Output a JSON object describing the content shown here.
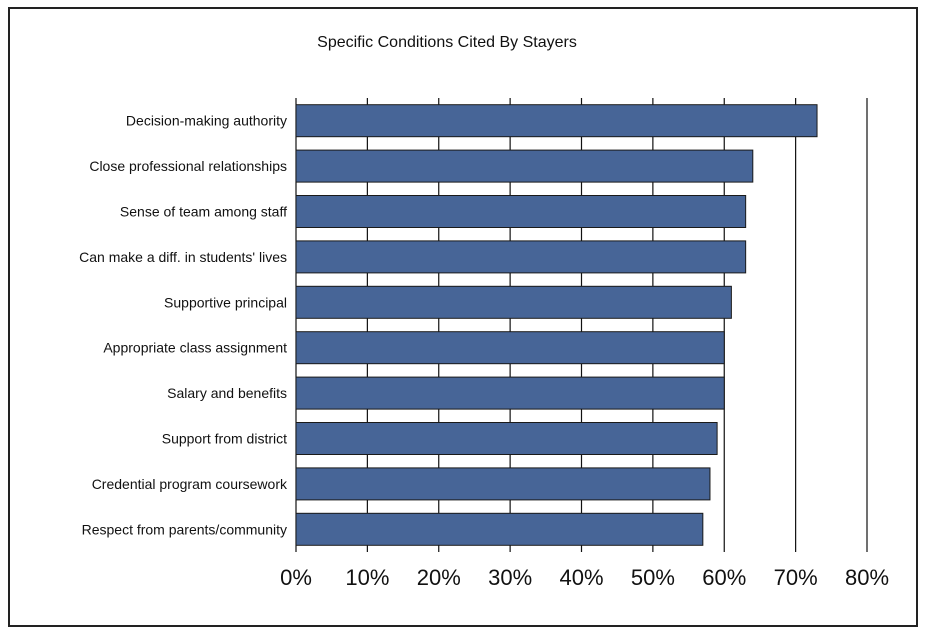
{
  "chart_data": {
    "type": "bar",
    "orientation": "horizontal",
    "title": "Specific Conditions Cited By Stayers",
    "xlabel": "",
    "ylabel": "",
    "categories": [
      "Decision-making authority",
      "Close professional relationships",
      "Sense of team among staff",
      "Can make a diff. in students' lives",
      "Supportive principal",
      "Appropriate class assignment",
      "Salary and benefits",
      "Support from district",
      "Credential program coursework",
      "Respect from parents/community"
    ],
    "values": [
      73,
      64,
      63,
      63,
      61,
      60,
      60,
      59,
      58,
      57
    ],
    "xlim": [
      0,
      80
    ],
    "x_ticks": [
      "0%",
      "10%",
      "20%",
      "30%",
      "40%",
      "50%",
      "60%",
      "70%",
      "80%"
    ],
    "grid": true,
    "legend": "none",
    "bar_color": "#476597"
  }
}
